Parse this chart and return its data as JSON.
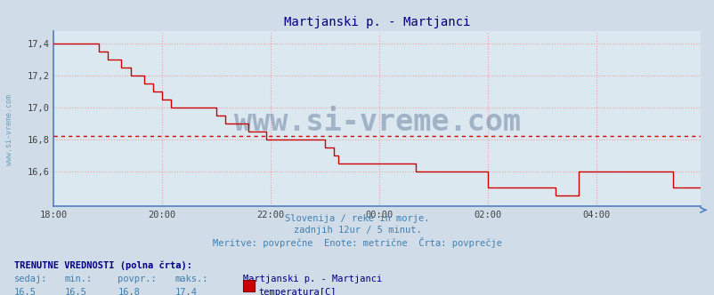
{
  "title": "Martjanski p. - Martjanci",
  "bg_color": "#d0dce8",
  "plot_bg_color": "#dce8f0",
  "grid_color": "#e8a0a0",
  "line_color": "#cc0000",
  "dashed_line_y": 16.82,
  "dashed_line_color": "#cc0000",
  "ylim": [
    16.38,
    17.48
  ],
  "yticks": [
    16.6,
    16.8,
    17.0,
    17.2,
    17.4
  ],
  "xtick_labels": [
    "18:00",
    "20:00",
    "22:00",
    "00:00",
    "02:00",
    "04:00"
  ],
  "watermark_text": "www.si-vreme.com",
  "watermark_color": "#1a3a6a",
  "watermark_alpha": 0.3,
  "subtitle_lines": [
    "Slovenija / reke in morje.",
    "zadnjih 12ur / 5 minut.",
    "Meritve: povprečne  Enote: metrične  Črta: povprečje"
  ],
  "subtitle_color": "#4080b0",
  "footer_bold": "TRENUTNE VREDNOSTI (polna črta):",
  "footer_col_headers": [
    "sedaj:",
    "min.:",
    "povpr.:",
    "maks.:",
    "Martjanski p. - Martjanci"
  ],
  "footer_vals": [
    "16,5",
    "16,5",
    "16,8",
    "17,4"
  ],
  "footer_legend_label": "temperatura[C]",
  "footer_legend_color": "#cc0000",
  "ylabel_text": "www.si-vreme.com",
  "ylabel_color": "#5090b0",
  "left_spine_color": "#5080c0",
  "bottom_spine_color": "#5080c0",
  "data_y": [
    17.4,
    17.4,
    17.4,
    17.4,
    17.4,
    17.4,
    17.4,
    17.4,
    17.4,
    17.4,
    17.35,
    17.35,
    17.3,
    17.3,
    17.3,
    17.25,
    17.25,
    17.2,
    17.2,
    17.2,
    17.15,
    17.15,
    17.1,
    17.1,
    17.05,
    17.05,
    17.0,
    17.0,
    17.0,
    17.0,
    17.0,
    17.0,
    17.0,
    17.0,
    17.0,
    17.0,
    16.95,
    16.95,
    16.9,
    16.9,
    16.9,
    16.9,
    16.9,
    16.85,
    16.85,
    16.85,
    16.85,
    16.8,
    16.8,
    16.8,
    16.8,
    16.8,
    16.8,
    16.8,
    16.8,
    16.8,
    16.8,
    16.8,
    16.8,
    16.8,
    16.75,
    16.75,
    16.7,
    16.65,
    16.65,
    16.65,
    16.65,
    16.65,
    16.65,
    16.65,
    16.65,
    16.65,
    16.65,
    16.65,
    16.65,
    16.65,
    16.65,
    16.65,
    16.65,
    16.65,
    16.6,
    16.6,
    16.6,
    16.6,
    16.6,
    16.6,
    16.6,
    16.6,
    16.6,
    16.6,
    16.6,
    16.6,
    16.6,
    16.6,
    16.6,
    16.6,
    16.5,
    16.5,
    16.5,
    16.5,
    16.5,
    16.5,
    16.5,
    16.5,
    16.5,
    16.5,
    16.5,
    16.5,
    16.5,
    16.5,
    16.5,
    16.45,
    16.45,
    16.45,
    16.45,
    16.45,
    16.6,
    16.6,
    16.6,
    16.6,
    16.6,
    16.6,
    16.6,
    16.6,
    16.6,
    16.6,
    16.6,
    16.6,
    16.6,
    16.6,
    16.6,
    16.6,
    16.6,
    16.6,
    16.6,
    16.6,
    16.6,
    16.5,
    16.5,
    16.5,
    16.5,
    16.5,
    16.5,
    16.5
  ]
}
